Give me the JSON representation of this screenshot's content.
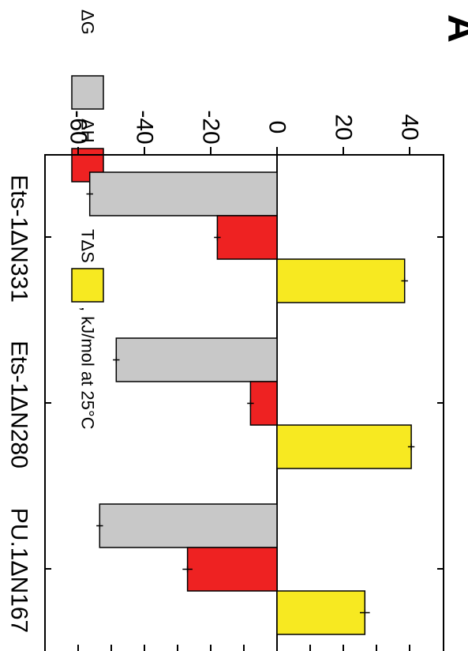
{
  "panel_label": "A",
  "chart_data": {
    "type": "bar",
    "orientation": "rotated-90-clockwise",
    "categories": [
      "Ets-1ΔN331",
      "Ets-1ΔN280",
      "PU.1ΔN167"
    ],
    "series": [
      {
        "name": "ΔG",
        "color": "#c8c8c8",
        "values": [
          -56.5,
          -48.5,
          -53.5
        ],
        "errors": [
          1.0,
          1.0,
          1.0
        ]
      },
      {
        "name": "ΔH",
        "color": "#ee2222",
        "values": [
          -18,
          -8,
          -27
        ],
        "errors": [
          1.0,
          1.0,
          1.5
        ]
      },
      {
        "name": "TΔS",
        "color": "#f7e921",
        "values": [
          38.5,
          40.5,
          26.5
        ],
        "errors": [
          1.0,
          1.0,
          1.5
        ]
      }
    ],
    "legend_suffix": ", kJ/mol at 25°C",
    "ylim": [
      -70,
      50
    ],
    "yticks": [
      -60,
      -40,
      -20,
      0,
      20,
      40
    ],
    "ytick_labels": [
      "-60",
      "-40",
      "-20",
      "0",
      "20",
      "40"
    ],
    "minor_ticks": [
      -60,
      -50,
      -40,
      -30,
      -20,
      -10,
      0,
      10,
      20,
      30,
      40
    ],
    "grid": false,
    "legend_position": "top"
  }
}
